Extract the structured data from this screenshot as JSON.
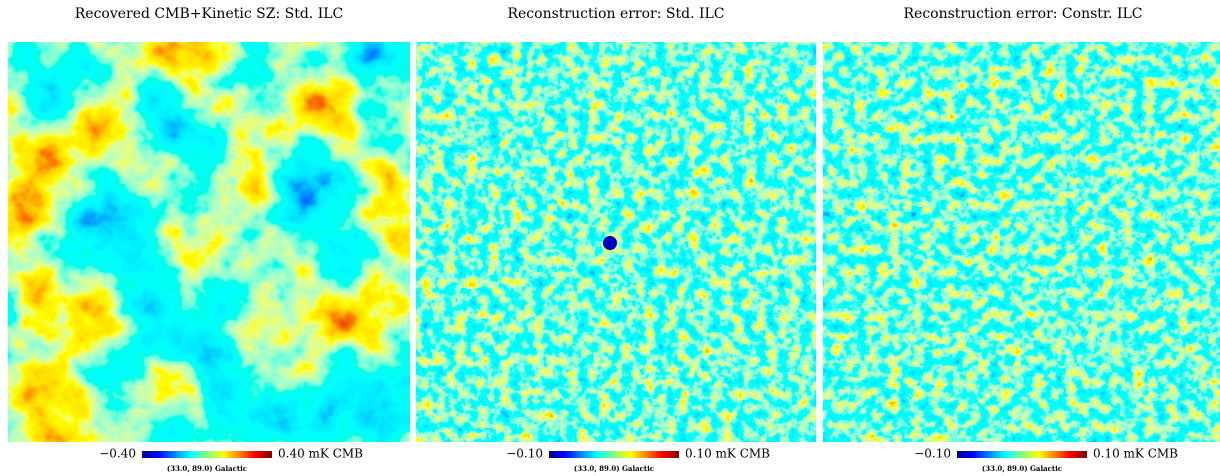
{
  "panels": [
    {
      "title": "Recovered CMB+Kinetic SZ: Std. ILC",
      "min_label": "−0.40",
      "max_label": "0.40 mK CMB",
      "coord_label": "(33.0, 89.0) Galactic"
    },
    {
      "title": "Reconstruction error: Std. ILC",
      "min_label": "−0.10",
      "max_label": "0.10 mK CMB",
      "coord_label": "(33.0, 89.0) Galactic"
    },
    {
      "title": "Reconstruction error: Constr. ILC",
      "min_label": "−0.10",
      "max_label": "0.10 mK CMB",
      "coord_label": "(33.0, 89.0) Galactic"
    }
  ]
}
